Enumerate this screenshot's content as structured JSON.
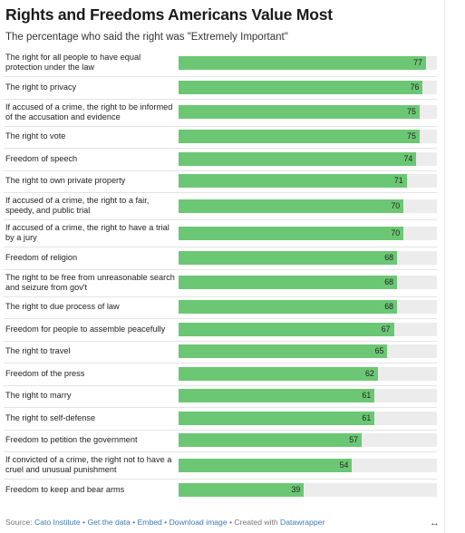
{
  "title": "Rights and Freedoms Americans Value Most",
  "subtitle": "The percentage who said the right was \"Extremely Important\"",
  "colors": {
    "bar": "#6cc774",
    "track": "#ececec",
    "link": "#3d7ab8"
  },
  "chart_data": {
    "type": "bar",
    "orientation": "horizontal",
    "title": "Rights and Freedoms Americans Value Most",
    "subtitle": "The percentage who said the right was \"Extremely Important\"",
    "xlim": [
      0,
      100
    ],
    "categories": [
      "The right for all people to have equal protection under the law",
      "The right to privacy",
      "If accused of a crime, the right to be informed of the accusation and evidence",
      "The right to vote",
      "Freedom of speech",
      "The right to own private property",
      "If accused of a crime, the right to a fair, speedy, and public trial",
      "If accused of a crime, the right to have a trial by a jury",
      "Freedom of religion",
      "The right to be free from unreasonable search and seizure from gov't",
      "The right to due process of law",
      "Freedom for people to assemble peacefully",
      "The right to travel",
      "Freedom of the press",
      "The right to marry",
      "The right to self-defense",
      "Freedom to petition the government",
      "If convicted of a crime, the right not to have a cruel and unusual punishment",
      "Freedom to keep and bear arms"
    ],
    "values": [
      77,
      76,
      75,
      75,
      74,
      71,
      70,
      70,
      68,
      68,
      68,
      67,
      65,
      62,
      61,
      61,
      57,
      54,
      39
    ]
  },
  "footer": {
    "source_prefix": "Source: ",
    "source": "Cato Institute",
    "sep": " • ",
    "get_data": "Get the data",
    "embed": "Embed",
    "download": "Download image",
    "created_with": "Created with ",
    "datawrapper": "Datawrapper"
  },
  "resize_icon": "↔"
}
